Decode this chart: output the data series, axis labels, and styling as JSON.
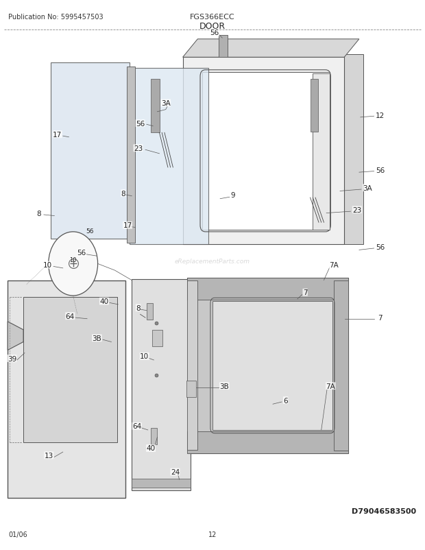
{
  "title": "DOOR",
  "model": "FGS366ECC",
  "pub_no": "Publication No: 5995457503",
  "diagram_no": "D79046583500",
  "date": "01/06",
  "page": "12",
  "bg_color": "#ffffff",
  "line_color": "#555555",
  "label_color": "#222222"
}
